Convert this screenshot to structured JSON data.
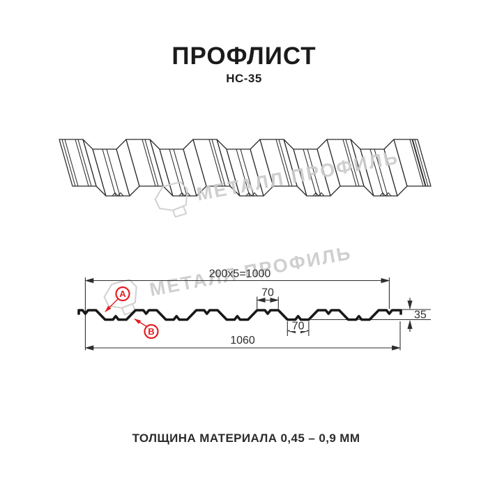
{
  "header": {
    "title": "ПРОФЛИСТ",
    "subtitle": "НС-35"
  },
  "watermark": {
    "brand": "МЕТАЛЛ ПРОФИЛЬ",
    "color": "#cbcbcb"
  },
  "cross_section": {
    "dims": {
      "working_width": "200x5=1000",
      "crest_width": "70",
      "valley_width": "70",
      "height": "35",
      "overall_width": "1060"
    },
    "labels": {
      "a": "A",
      "b": "B"
    },
    "colors": {
      "accent_red": "#e31e24",
      "line": "#1a1a1a"
    }
  },
  "footer": {
    "material_thickness": "ТОЛЩИНА МАТЕРИАЛА 0,45 – 0,9 ММ"
  }
}
